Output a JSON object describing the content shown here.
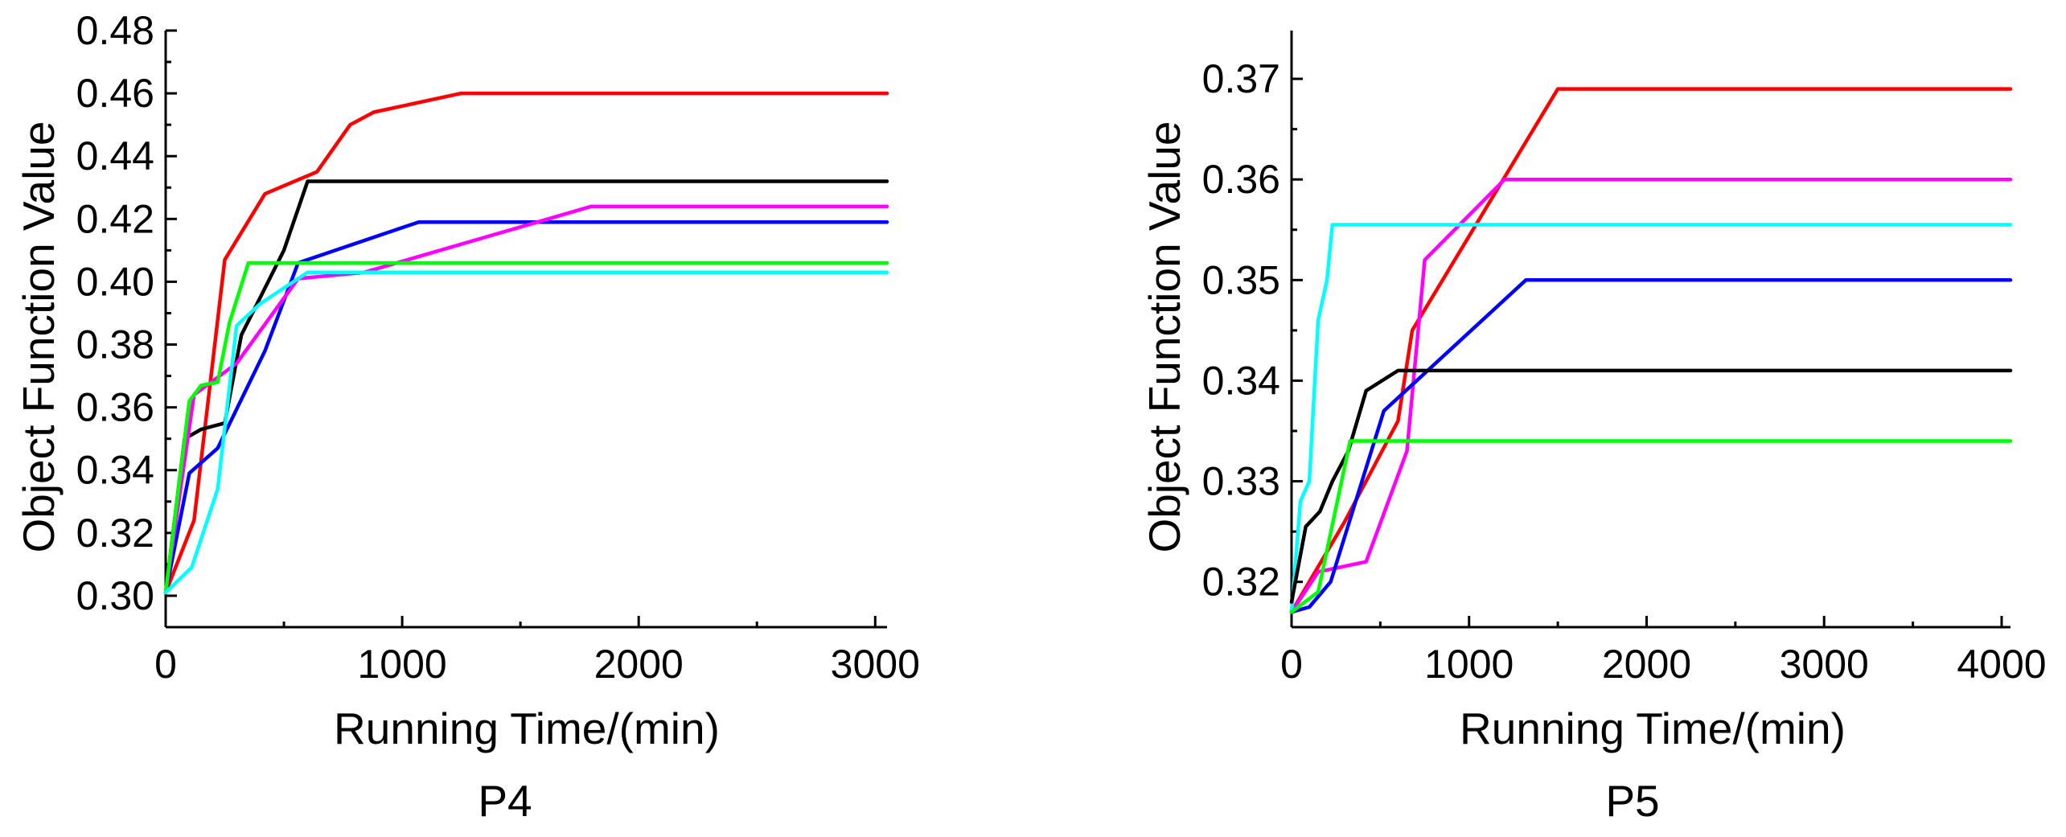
{
  "chart_data": [
    {
      "type": "line",
      "title": "P4",
      "xlabel": "Running Time/(min)",
      "ylabel": "Object Function Value",
      "xlim": [
        0,
        3050
      ],
      "ylim": [
        0.29,
        0.48
      ],
      "xticks": [
        0,
        1000,
        2000,
        3000
      ],
      "xtick_labels": [
        "0",
        "1000",
        "2000",
        "3000"
      ],
      "yticks": [
        0.3,
        0.32,
        0.34,
        0.36,
        0.38,
        0.4,
        0.42,
        0.44,
        0.46,
        0.48
      ],
      "ytick_labels": [
        "0.30",
        "0.32",
        "0.34",
        "0.36",
        "0.38",
        "0.40",
        "0.42",
        "0.44",
        "0.46",
        "0.48"
      ],
      "grid": false,
      "series": [
        {
          "name": "red",
          "color": "#ff0000",
          "x": [
            0,
            120,
            250,
            420,
            640,
            780,
            880,
            1250,
            3050
          ],
          "y": [
            0.301,
            0.324,
            0.407,
            0.428,
            0.435,
            0.45,
            0.454,
            0.46,
            0.46
          ]
        },
        {
          "name": "black",
          "color": "#000000",
          "x": [
            0,
            80,
            150,
            250,
            320,
            420,
            500,
            600,
            3050
          ],
          "y": [
            0.301,
            0.35,
            0.353,
            0.355,
            0.383,
            0.398,
            0.41,
            0.432,
            0.432
          ]
        },
        {
          "name": "blue",
          "color": "#0000ff",
          "x": [
            0,
            100,
            220,
            420,
            560,
            1070,
            3050
          ],
          "y": [
            0.301,
            0.339,
            0.347,
            0.378,
            0.406,
            0.419,
            0.419
          ]
        },
        {
          "name": "magenta",
          "color": "#ff00ff",
          "x": [
            0,
            120,
            300,
            560,
            840,
            1800,
            3050
          ],
          "y": [
            0.301,
            0.364,
            0.374,
            0.401,
            0.403,
            0.424,
            0.424
          ]
        },
        {
          "name": "green",
          "color": "#00ff00",
          "x": [
            0,
            100,
            150,
            220,
            270,
            350,
            3050
          ],
          "y": [
            0.301,
            0.362,
            0.367,
            0.368,
            0.387,
            0.406,
            0.406
          ]
        },
        {
          "name": "cyan",
          "color": "#00ffff",
          "x": [
            0,
            110,
            220,
            300,
            400,
            600,
            3050
          ],
          "y": [
            0.301,
            0.309,
            0.334,
            0.386,
            0.393,
            0.403,
            0.403
          ]
        }
      ]
    },
    {
      "type": "line",
      "title": "P5",
      "xlabel": "Running Time/(min)",
      "ylabel": "Object Function Value",
      "xlim": [
        0,
        4050
      ],
      "ylim": [
        0.3155,
        0.3748
      ],
      "xticks": [
        0,
        1000,
        2000,
        3000,
        4000
      ],
      "xtick_labels": [
        "0",
        "1000",
        "2000",
        "3000",
        "4000"
      ],
      "yticks": [
        0.32,
        0.33,
        0.34,
        0.35,
        0.36,
        0.37
      ],
      "ytick_labels": [
        "0.32",
        "0.33",
        "0.34",
        "0.35",
        "0.36",
        "0.37"
      ],
      "grid": false,
      "series": [
        {
          "name": "red",
          "color": "#ff0000",
          "x": [
            0,
            300,
            600,
            680,
            1500,
            4050
          ],
          "y": [
            0.317,
            0.326,
            0.336,
            0.345,
            0.369,
            0.369
          ]
        },
        {
          "name": "magenta",
          "color": "#ff00ff",
          "x": [
            0,
            150,
            420,
            650,
            750,
            1200,
            4050
          ],
          "y": [
            0.317,
            0.321,
            0.322,
            0.333,
            0.352,
            0.36,
            0.36
          ]
        },
        {
          "name": "cyan",
          "color": "#00ffff",
          "x": [
            0,
            50,
            100,
            150,
            200,
            230,
            4050
          ],
          "y": [
            0.317,
            0.328,
            0.33,
            0.346,
            0.35,
            0.3555,
            0.3555
          ]
        },
        {
          "name": "blue",
          "color": "#0000ff",
          "x": [
            0,
            100,
            220,
            520,
            1320,
            4050
          ],
          "y": [
            0.317,
            0.3175,
            0.32,
            0.337,
            0.35,
            0.35
          ]
        },
        {
          "name": "black",
          "color": "#000000",
          "x": [
            0,
            80,
            160,
            230,
            320,
            420,
            600,
            800,
            4050
          ],
          "y": [
            0.318,
            0.3255,
            0.327,
            0.33,
            0.333,
            0.339,
            0.341,
            0.341,
            0.341
          ]
        },
        {
          "name": "green",
          "color": "#00ff00",
          "x": [
            0,
            150,
            330,
            4050
          ],
          "y": [
            0.317,
            0.319,
            0.334,
            0.334
          ]
        }
      ]
    }
  ]
}
